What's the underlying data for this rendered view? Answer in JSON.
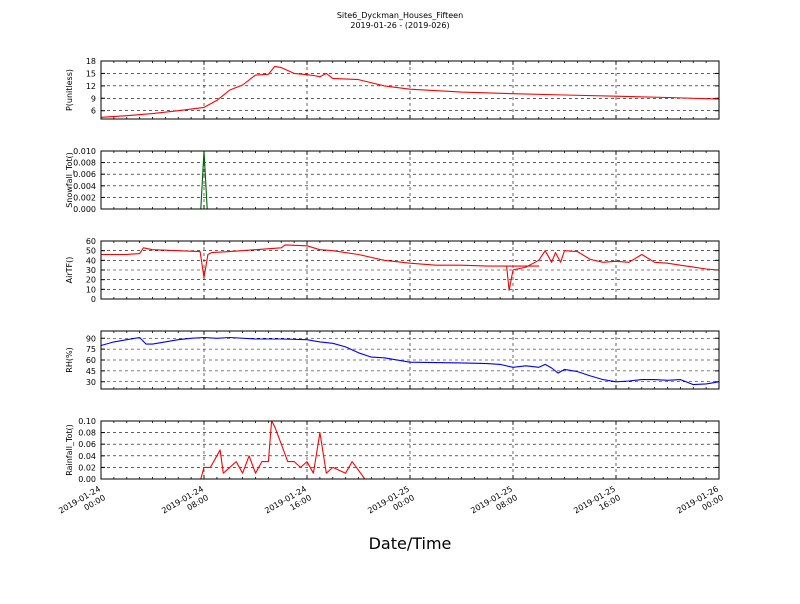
{
  "figure": {
    "title_line1": "Site6_Dyckman_Houses_Fifteen",
    "title_line2": "2019-01-26 - (2019-026)",
    "xlabel": "Date/Time"
  },
  "chart_data": [
    {
      "type": "line",
      "ylabel": "P(unitless)",
      "ylim": [
        4,
        18
      ],
      "yticks": [
        6,
        9,
        12,
        15,
        18
      ],
      "ytick_labels": [
        "6",
        "9",
        "12",
        "15",
        "18"
      ],
      "xlim": [
        "2019-01-24 00:00",
        "2019-01-26 00:00"
      ],
      "grid": true,
      "color": "#ff0000",
      "x_hours": [
        0,
        2,
        4,
        6,
        8,
        9,
        10,
        11,
        12,
        13,
        13.5,
        14,
        15,
        16,
        16.5,
        17,
        17.5,
        18,
        20,
        22,
        24,
        28,
        32,
        36,
        40,
        44,
        48
      ],
      "values": [
        4.4,
        4.8,
        5.3,
        6.0,
        6.8,
        8.5,
        11.0,
        12.2,
        14.6,
        14.8,
        16.7,
        16.4,
        15.0,
        14.7,
        14.5,
        14.2,
        15.0,
        13.8,
        13.5,
        12.0,
        11.2,
        10.5,
        10.1,
        9.8,
        9.5,
        9.2,
        8.8
      ]
    },
    {
      "type": "line",
      "ylabel": "Snowfall_Tot()",
      "ylim": [
        0,
        0.01
      ],
      "yticks": [
        0,
        0.002,
        0.004,
        0.006,
        0.008,
        0.01
      ],
      "ytick_labels": [
        "0.000",
        "0.002",
        "0.004",
        "0.006",
        "0.008",
        "0.010"
      ],
      "xlim": [
        "2019-01-24 00:00",
        "2019-01-26 00:00"
      ],
      "grid": true,
      "color": "#006400",
      "x_hours": [
        0,
        7.75,
        8.0,
        8.25,
        48
      ],
      "values": [
        0,
        0,
        0.01,
        0,
        0
      ]
    },
    {
      "type": "line",
      "ylabel": "AirTF()",
      "ylim": [
        0,
        60
      ],
      "yticks": [
        0,
        10,
        20,
        30,
        40,
        50,
        60
      ],
      "ytick_labels": [
        "0",
        "10",
        "20",
        "30",
        "40",
        "50",
        "60"
      ],
      "xlim": [
        "2019-01-24 00:00",
        "2019-01-26 00:00"
      ],
      "grid": true,
      "color": "#ff0000",
      "x_hours": [
        0,
        2,
        3,
        3.3,
        4,
        6,
        7.7,
        8.0,
        8.3,
        8.6,
        10,
        12,
        14,
        14.3,
        16,
        17,
        18,
        20,
        22,
        24,
        26,
        28,
        30,
        32,
        34,
        31.5,
        31.7,
        32,
        33,
        34,
        34.5,
        35,
        35.3,
        35.7,
        36,
        37,
        38,
        39,
        40,
        41,
        42,
        43,
        44,
        45,
        46,
        47,
        48
      ],
      "values": [
        46,
        46,
        47,
        53,
        51,
        50,
        49,
        22,
        46,
        48,
        49,
        51,
        53,
        56,
        55,
        51,
        50,
        46,
        40,
        37,
        35,
        35,
        34,
        34,
        34,
        34,
        9,
        30,
        33,
        40,
        50,
        38,
        48,
        38,
        50,
        49,
        41,
        38,
        39,
        38,
        46,
        38,
        37,
        35,
        33,
        31,
        30
      ]
    },
    {
      "type": "line",
      "ylabel": "RH(%)",
      "ylim": [
        20,
        100
      ],
      "yticks": [
        30,
        45,
        60,
        75,
        90
      ],
      "ytick_labels": [
        "30",
        "45",
        "60",
        "75",
        "90"
      ],
      "xlim": [
        "2019-01-24 00:00",
        "2019-01-26 00:00"
      ],
      "grid": true,
      "color": "#0000ff",
      "x_hours": [
        0,
        1,
        2,
        3,
        3.5,
        4,
        6,
        7,
        8,
        9,
        10,
        12,
        14,
        16,
        17,
        18,
        19,
        20,
        21,
        22,
        24,
        28,
        30,
        31,
        32,
        33,
        34,
        34.5,
        35,
        35.5,
        36,
        37,
        38,
        39,
        40,
        41,
        42,
        43,
        44,
        45,
        46,
        47,
        48
      ],
      "values": [
        80,
        85,
        88,
        91,
        82,
        82,
        88,
        90,
        91,
        90,
        91,
        89,
        89,
        88,
        85,
        83,
        78,
        70,
        64,
        63,
        57,
        56,
        55,
        54,
        50,
        52,
        50,
        54,
        49,
        42,
        47,
        44,
        38,
        33,
        30,
        31,
        33,
        33,
        32,
        33,
        26,
        27,
        30
      ]
    },
    {
      "type": "line",
      "ylabel": "Rainfall_Tot()",
      "ylim": [
        0,
        0.1
      ],
      "yticks": [
        0,
        0.02,
        0.04,
        0.06,
        0.08,
        0.1
      ],
      "ytick_labels": [
        "0.00",
        "0.02",
        "0.04",
        "0.06",
        "0.08",
        "0.10"
      ],
      "xlim": [
        "2019-01-24 00:00",
        "2019-01-26 00:00"
      ],
      "xticks": [
        0,
        8,
        16,
        24,
        32,
        40,
        48
      ],
      "xtick_labels": [
        [
          "2019-01-24",
          "00:00"
        ],
        [
          "2019-01-24",
          "08:00"
        ],
        [
          "2019-01-24",
          "16:00"
        ],
        [
          "2019-01-25",
          "00:00"
        ],
        [
          "2019-01-25",
          "08:00"
        ],
        [
          "2019-01-25",
          "16:00"
        ],
        [
          "2019-01-26",
          "00:00"
        ]
      ],
      "grid": true,
      "color": "#ff0000",
      "x_hours": [
        0,
        7.75,
        8.0,
        8.5,
        9.0,
        9.25,
        9.5,
        10,
        10.5,
        11,
        11.5,
        12,
        12.5,
        13,
        13.25,
        13.5,
        14,
        14.5,
        15,
        15.5,
        16,
        16.5,
        17,
        17.5,
        18,
        19,
        19.5,
        20,
        20.5,
        21,
        22,
        48
      ],
      "values": [
        0,
        0,
        0.02,
        0.02,
        0.04,
        0.05,
        0.01,
        0.02,
        0.03,
        0.01,
        0.04,
        0.01,
        0.03,
        0.03,
        0.1,
        0.09,
        0.06,
        0.03,
        0.03,
        0.02,
        0.03,
        0.01,
        0.08,
        0.01,
        0.02,
        0.01,
        0.03,
        0.015,
        0,
        0,
        0,
        0
      ]
    }
  ]
}
